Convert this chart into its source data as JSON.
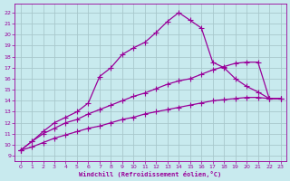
{
  "xlabel": "Windchill (Refroidissement éolien,°C)",
  "bg_color": "#c8eaee",
  "line_color": "#990099",
  "grid_color": "#a8c8cc",
  "xlim": [
    -0.5,
    23.5
  ],
  "ylim": [
    8.5,
    22.8
  ],
  "xticks": [
    0,
    1,
    2,
    3,
    4,
    5,
    6,
    7,
    8,
    9,
    10,
    11,
    12,
    13,
    14,
    15,
    16,
    17,
    18,
    19,
    20,
    21,
    22,
    23
  ],
  "yticks": [
    9,
    10,
    11,
    12,
    13,
    14,
    15,
    16,
    17,
    18,
    19,
    20,
    21,
    22
  ],
  "line3_x": [
    0,
    1,
    2,
    3,
    4,
    5,
    6,
    7,
    8,
    9,
    10,
    11,
    12,
    13,
    14,
    15,
    16,
    17,
    18,
    19,
    20,
    21,
    22,
    23
  ],
  "line3_y": [
    9.5,
    10.3,
    11.2,
    12.0,
    12.5,
    13.0,
    13.8,
    16.2,
    17.0,
    18.2,
    18.8,
    19.3,
    20.2,
    21.2,
    22.0,
    21.3,
    20.6,
    17.5,
    17.0,
    16.0,
    15.3,
    14.8,
    14.2,
    14.2
  ],
  "line2_x": [
    0,
    1,
    2,
    3,
    4,
    5,
    6,
    7,
    8,
    9,
    10,
    11,
    12,
    13,
    14,
    15,
    16,
    17,
    18,
    19,
    20,
    21,
    22,
    23
  ],
  "line2_y": [
    9.5,
    10.3,
    11.0,
    11.5,
    12.0,
    12.3,
    12.8,
    13.2,
    13.6,
    14.0,
    14.4,
    14.7,
    15.1,
    15.5,
    15.8,
    16.0,
    16.4,
    16.8,
    17.1,
    17.4,
    17.5,
    17.5,
    14.2,
    14.2
  ],
  "line1_x": [
    0,
    1,
    2,
    3,
    4,
    5,
    6,
    7,
    8,
    9,
    10,
    11,
    12,
    13,
    14,
    15,
    16,
    17,
    18,
    19,
    20,
    21,
    22,
    23
  ],
  "line1_y": [
    9.5,
    9.8,
    10.2,
    10.6,
    10.9,
    11.2,
    11.5,
    11.7,
    12.0,
    12.3,
    12.5,
    12.8,
    13.0,
    13.2,
    13.4,
    13.6,
    13.8,
    14.0,
    14.1,
    14.2,
    14.3,
    14.3,
    14.2,
    14.2
  ]
}
